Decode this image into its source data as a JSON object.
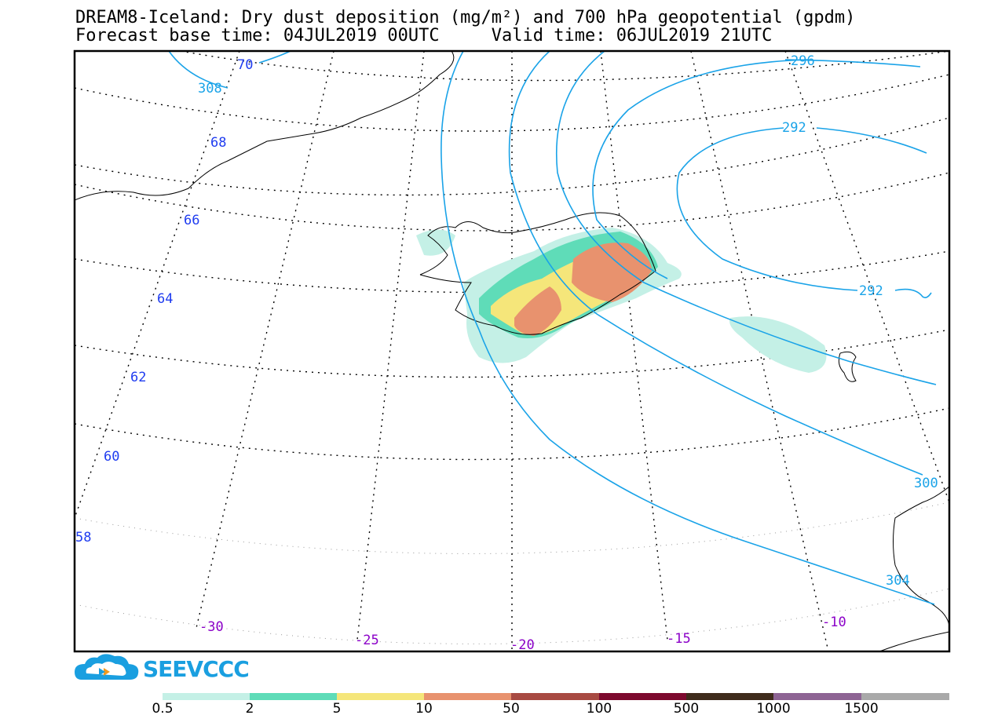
{
  "title": {
    "line1": "DREAM8-Iceland: Dry dust deposition (mg/m²) and 700 hPa geopotential (gpdm)",
    "line2": "Forecast base time: 04JUL2019 00UTC     Valid time: 06JUL2019 21UTC"
  },
  "map": {
    "lat_labels": [
      "70",
      "68",
      "66",
      "64",
      "62",
      "60",
      "58"
    ],
    "lon_labels": [
      "-30",
      "-25",
      "-20",
      "-15",
      "-10"
    ],
    "contour_labels": [
      "296",
      "292",
      "292",
      "308",
      "300",
      "304"
    ],
    "colors": {
      "contour": "#1aa3e8",
      "lat_label": "#1f3cf0",
      "lon_label": "#8b00c8",
      "frame": "#000000"
    }
  },
  "logo": {
    "text": "SEEVCCC"
  },
  "colorbar": {
    "labels": [
      "0.5",
      "2",
      "5",
      "10",
      "50",
      "100",
      "500",
      "1000",
      "1500"
    ],
    "colors": [
      "#c4f0e6",
      "#5fdcb8",
      "#f5e67a",
      "#e8926e",
      "#a84a42",
      "#7d0a2e",
      "#3f2b1c",
      "#8e6494",
      "#a9a9a9"
    ]
  }
}
